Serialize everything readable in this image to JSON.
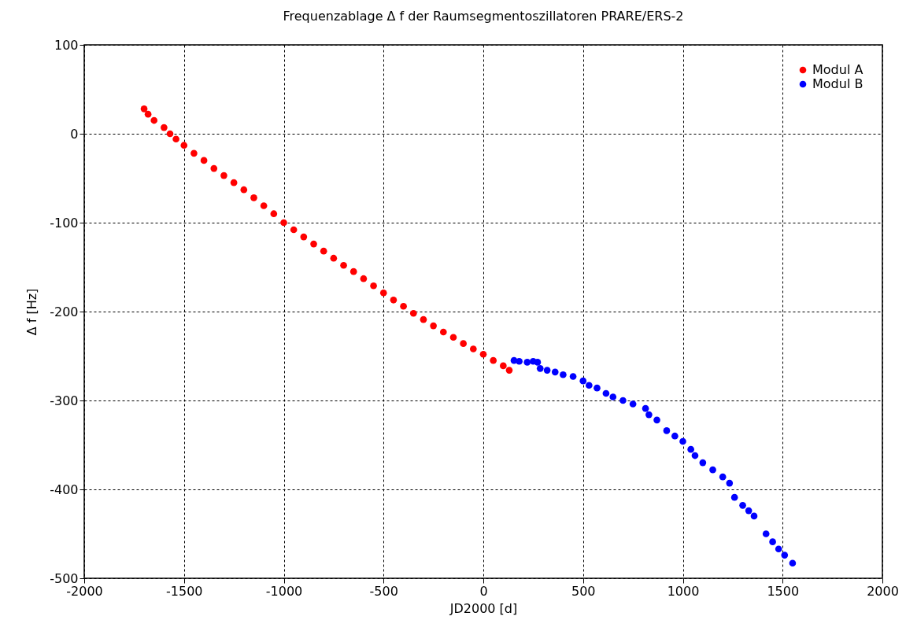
{
  "chart_data": {
    "type": "scatter",
    "title": "Frequenzablage Δ f  der Raumsegmentoszillatoren PRARE/ERS-2",
    "xlabel": "JD2000 [d]",
    "ylabel": "Δ f  [Hz]",
    "xlim": [
      -2000,
      2000
    ],
    "ylim": [
      -500,
      100
    ],
    "xticks": [
      -2000,
      -1500,
      -1000,
      -500,
      0,
      500,
      1000,
      1500,
      2000
    ],
    "yticks": [
      -500,
      -400,
      -300,
      -200,
      -100,
      0,
      100
    ],
    "grid": true,
    "legend": "top right",
    "marker": "circle",
    "series": [
      {
        "name": "Modul A",
        "color": "#ff0000",
        "x": [
          -1700,
          -1680,
          -1650,
          -1600,
          -1570,
          -1540,
          -1500,
          -1450,
          -1400,
          -1350,
          -1300,
          -1250,
          -1200,
          -1150,
          -1100,
          -1050,
          -1000,
          -950,
          -900,
          -850,
          -800,
          -750,
          -700,
          -650,
          -600,
          -550,
          -500,
          -450,
          -400,
          -350,
          -300,
          -250,
          -200,
          -150,
          -100,
          -50,
          0,
          50,
          100,
          130
        ],
        "values": [
          28,
          22,
          15,
          7,
          0,
          -6,
          -13,
          -22,
          -30,
          -39,
          -47,
          -55,
          -63,
          -72,
          -81,
          -90,
          -100,
          -108,
          -116,
          -124,
          -132,
          -140,
          -148,
          -155,
          -163,
          -171,
          -179,
          -187,
          -194,
          -202,
          -209,
          -216,
          -223,
          -229,
          -236,
          -242,
          -248,
          -255,
          -261,
          -266
        ]
      },
      {
        "name": "Modul B",
        "color": "#0000ff",
        "x": [
          154,
          180,
          220,
          250,
          272,
          285,
          320,
          360,
          400,
          450,
          500,
          530,
          570,
          615,
          650,
          700,
          750,
          813,
          830,
          870,
          919,
          960,
          1000,
          1040,
          1061,
          1100,
          1150,
          1200,
          1234,
          1259,
          1300,
          1330,
          1357,
          1417,
          1450,
          1480,
          1510,
          1550
        ],
        "values": [
          -255,
          -256,
          -257,
          -256,
          -257,
          -264,
          -266,
          -268,
          -271,
          -273,
          -278,
          -283,
          -286,
          -292,
          -296,
          -300,
          -304,
          -309,
          -316,
          -322,
          -334,
          -340,
          -346,
          -355,
          -362,
          -370,
          -378,
          -386,
          -393,
          -409,
          -418,
          -424,
          -430,
          -450,
          -459,
          -467,
          -474,
          -483
        ]
      }
    ]
  }
}
